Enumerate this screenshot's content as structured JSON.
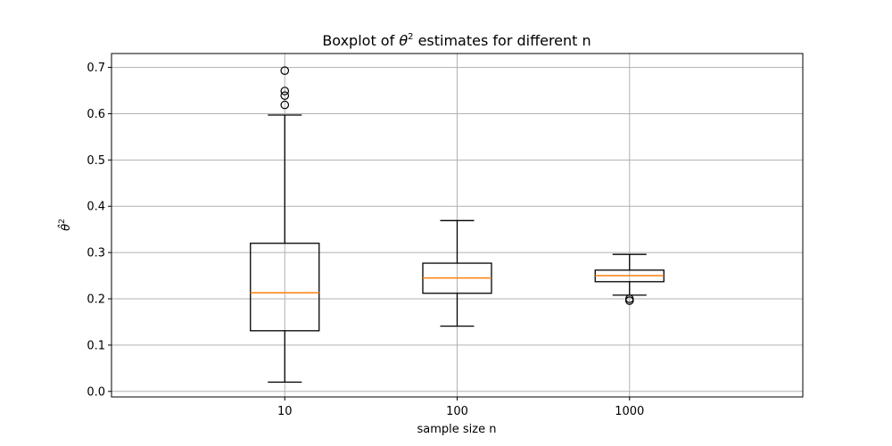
{
  "chart_data": {
    "type": "boxplot",
    "title": "Boxplot of θ² estimates for different n",
    "title_prefix": "Boxplot of ",
    "title_symbol": "θ",
    "title_superscript": "2",
    "title_suffix": " estimates for different n",
    "xlabel": "sample size n",
    "ylabel_symbol": "θ̂",
    "ylabel_superscript": "2",
    "ylim": [
      -0.012,
      0.73
    ],
    "yticks": [
      0.0,
      0.1,
      0.2,
      0.3,
      0.4,
      0.5,
      0.6,
      0.7
    ],
    "ytick_labels": [
      "0.0",
      "0.1",
      "0.2",
      "0.3",
      "0.4",
      "0.5",
      "0.6",
      "0.7"
    ],
    "grid": true,
    "categories": [
      "10",
      "100",
      "1000"
    ],
    "boxes": [
      {
        "label": "10",
        "whisker_low": 0.02,
        "q1": 0.131,
        "median": 0.213,
        "q3": 0.32,
        "whisker_high": 0.597,
        "fliers": [
          0.619,
          0.639,
          0.649,
          0.693
        ]
      },
      {
        "label": "100",
        "whisker_low": 0.141,
        "q1": 0.212,
        "median": 0.245,
        "q3": 0.277,
        "whisker_high": 0.369,
        "fliers": []
      },
      {
        "label": "1000",
        "whisker_low": 0.208,
        "q1": 0.237,
        "median": 0.25,
        "q3": 0.262,
        "whisker_high": 0.296,
        "fliers": [
          0.196,
          0.2
        ]
      }
    ],
    "colors": {
      "box": "#000000",
      "median": "#ff7f0e",
      "grid": "#b0b0b0"
    }
  }
}
